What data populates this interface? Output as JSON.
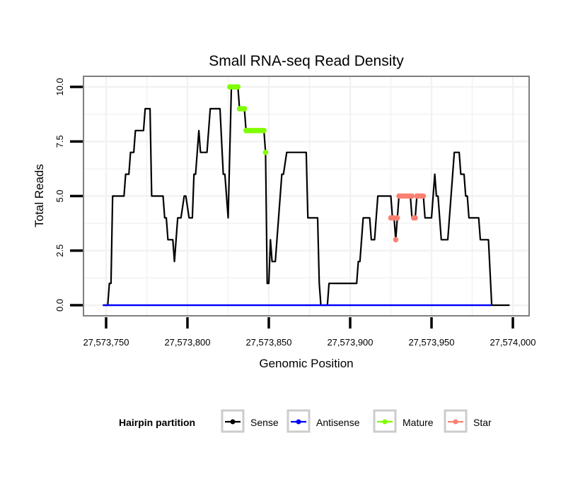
{
  "chart_data": {
    "type": "line",
    "title": "Small RNA-seq Read Density",
    "xlabel": "Genomic Position",
    "ylabel": "Total Reads",
    "xlim": [
      27573738,
      27574010
    ],
    "ylim": [
      -0.5,
      10.5
    ],
    "x_ticks": [
      27573750,
      27573800,
      27573850,
      27573900,
      27573950,
      27574000
    ],
    "x_tick_labels": [
      "27,573,750",
      "27,573,800",
      "27,573,850",
      "27,573,900",
      "27,573,950",
      "27,574,000"
    ],
    "y_ticks": [
      0,
      2.5,
      5,
      7.5,
      10
    ],
    "y_tick_labels": [
      "0.0",
      "2.5",
      "5.0",
      "7.5",
      "10.0"
    ],
    "grid": true,
    "legend": {
      "title": "Hairpin partition",
      "placement": "bottom",
      "entries": [
        "Sense",
        "Antisense",
        "Mature",
        "Star"
      ]
    },
    "series": [
      {
        "name": "Sense",
        "color": "#000000",
        "style": "line",
        "points": [
          [
            27573748,
            0
          ],
          [
            27573751,
            0
          ],
          [
            27573752,
            1
          ],
          [
            27573753,
            1
          ],
          [
            27573754,
            5
          ],
          [
            27573761,
            5
          ],
          [
            27573762,
            6
          ],
          [
            27573764,
            6
          ],
          [
            27573765,
            7
          ],
          [
            27573767,
            7
          ],
          [
            27573768,
            8
          ],
          [
            27573773,
            8
          ],
          [
            27573774,
            9
          ],
          [
            27573777,
            9
          ],
          [
            27573778,
            5
          ],
          [
            27573785,
            5
          ],
          [
            27573786,
            4
          ],
          [
            27573787,
            4
          ],
          [
            27573788,
            3
          ],
          [
            27573791,
            3
          ],
          [
            27573792,
            2
          ],
          [
            27573794,
            4
          ],
          [
            27573796,
            4
          ],
          [
            27573798,
            5
          ],
          [
            27573799,
            5
          ],
          [
            27573801,
            4
          ],
          [
            27573803,
            4
          ],
          [
            27573804,
            6
          ],
          [
            27573805,
            6
          ],
          [
            27573807,
            8
          ],
          [
            27573808,
            7
          ],
          [
            27573812,
            7
          ],
          [
            27573814,
            9
          ],
          [
            27573820,
            9
          ],
          [
            27573822,
            6
          ],
          [
            27573823,
            6
          ],
          [
            27573825,
            4
          ],
          [
            27573827,
            10
          ],
          [
            27573831,
            10
          ],
          [
            27573832,
            9
          ],
          [
            27573835,
            9
          ],
          [
            27573836,
            8
          ],
          [
            27573847,
            8
          ],
          [
            27573848,
            7
          ],
          [
            27573849,
            1
          ],
          [
            27573850,
            1
          ],
          [
            27573851,
            3
          ],
          [
            27573852,
            2
          ],
          [
            27573854,
            2
          ],
          [
            27573857,
            5
          ],
          [
            27573858,
            6
          ],
          [
            27573859,
            6
          ],
          [
            27573861,
            7
          ],
          [
            27573873,
            7
          ],
          [
            27573874,
            4
          ],
          [
            27573880,
            4
          ],
          [
            27573881,
            1
          ],
          [
            27573882,
            0
          ],
          [
            27573886,
            0
          ],
          [
            27573887,
            1
          ],
          [
            27573904,
            1
          ],
          [
            27573905,
            2
          ],
          [
            27573906,
            2
          ],
          [
            27573908,
            4
          ],
          [
            27573912,
            4
          ],
          [
            27573913,
            3
          ],
          [
            27573915,
            3
          ],
          [
            27573916,
            4
          ],
          [
            27573917,
            5
          ],
          [
            27573925,
            5
          ],
          [
            27573926,
            4
          ],
          [
            27573927,
            4
          ],
          [
            27573928,
            3
          ],
          [
            27573930,
            5
          ],
          [
            27573937,
            5
          ],
          [
            27573938,
            4
          ],
          [
            27573940,
            4
          ],
          [
            27573941,
            5
          ],
          [
            27573945,
            5
          ],
          [
            27573946,
            4
          ],
          [
            27573950,
            4
          ],
          [
            27573952,
            6
          ],
          [
            27573953,
            5
          ],
          [
            27573954,
            5
          ],
          [
            27573956,
            3
          ],
          [
            27573960,
            3
          ],
          [
            27573963,
            6
          ],
          [
            27573964,
            7
          ],
          [
            27573967,
            7
          ],
          [
            27573968,
            6
          ],
          [
            27573970,
            6
          ],
          [
            27573971,
            5
          ],
          [
            27573972,
            5
          ],
          [
            27573973,
            4
          ],
          [
            27573979,
            4
          ],
          [
            27573980,
            3
          ],
          [
            27573985,
            3
          ],
          [
            27573987,
            0
          ],
          [
            27573998,
            0
          ]
        ]
      },
      {
        "name": "Antisense",
        "color": "#0000ff",
        "style": "line",
        "points": [
          [
            27573748,
            0
          ],
          [
            27573987,
            0
          ]
        ]
      },
      {
        "name": "Mature",
        "color": "#7fff00",
        "style": "points",
        "points": [
          [
            27573826,
            10
          ],
          [
            27573827,
            10
          ],
          [
            27573828,
            10
          ],
          [
            27573829,
            10
          ],
          [
            27573830,
            10
          ],
          [
            27573831,
            10
          ],
          [
            27573832,
            9
          ],
          [
            27573833,
            9
          ],
          [
            27573834,
            9
          ],
          [
            27573835,
            9
          ],
          [
            27573836,
            8
          ],
          [
            27573837,
            8
          ],
          [
            27573838,
            8
          ],
          [
            27573839,
            8
          ],
          [
            27573840,
            8
          ],
          [
            27573841,
            8
          ],
          [
            27573842,
            8
          ],
          [
            27573843,
            8
          ],
          [
            27573844,
            8
          ],
          [
            27573845,
            8
          ],
          [
            27573846,
            8
          ],
          [
            27573847,
            8
          ],
          [
            27573848,
            7
          ]
        ]
      },
      {
        "name": "Star",
        "color": "#fa8072",
        "style": "points",
        "points": [
          [
            27573925,
            4
          ],
          [
            27573926,
            4
          ],
          [
            27573927,
            4
          ],
          [
            27573928,
            3
          ],
          [
            27573929,
            4
          ],
          [
            27573930,
            5
          ],
          [
            27573931,
            5
          ],
          [
            27573932,
            5
          ],
          [
            27573933,
            5
          ],
          [
            27573934,
            5
          ],
          [
            27573935,
            5
          ],
          [
            27573936,
            5
          ],
          [
            27573937,
            5
          ],
          [
            27573938,
            5
          ],
          [
            27573939,
            4
          ],
          [
            27573940,
            4
          ],
          [
            27573941,
            5
          ],
          [
            27573942,
            5
          ],
          [
            27573943,
            5
          ],
          [
            27573944,
            5
          ],
          [
            27573945,
            5
          ]
        ]
      }
    ]
  }
}
